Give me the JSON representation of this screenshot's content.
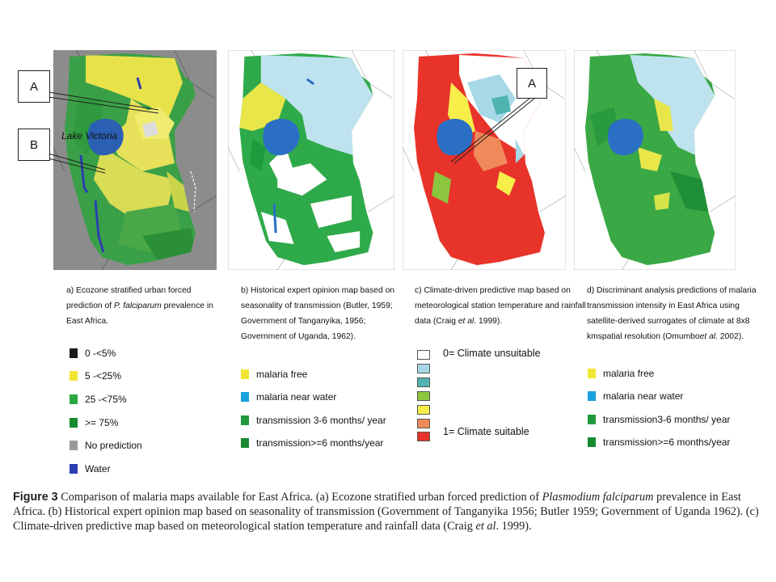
{
  "callouts": {
    "panel_a": [
      "A",
      "B"
    ],
    "panel_c": [
      "A"
    ]
  },
  "map_labels": {
    "lake_victoria": "Lake Victoria"
  },
  "panels": [
    {
      "id": "a",
      "caption_prefix": "a)   Ecozone stratified urban forced prediction of ",
      "caption_italic": "P. falciparum",
      "caption_suffix": " prevalence in East Africa.",
      "legend": [
        {
          "label": "0 -<5%",
          "color": "#1a1a1a"
        },
        {
          "label": "5 -<25%",
          "color": "#f2e635"
        },
        {
          "label": "25 -<75%",
          "color": "#2aa844"
        },
        {
          "label": ">= 75%",
          "color": "#178a30"
        },
        {
          "label": "No prediction",
          "color": "#9a9a9a"
        },
        {
          "label": "Water",
          "color": "#2b3fb0"
        }
      ]
    },
    {
      "id": "b",
      "caption_prefix": "b) Historical expert opinion map based on seasonality of transmission (Butler, 1959; Government of Tanganyika, 1956; Government of Uganda, 1962).",
      "caption_italic": "",
      "caption_suffix": "",
      "legend": [
        {
          "label": "malaria free",
          "color": "#f2e635"
        },
        {
          "label": "malaria near water",
          "color": "#1aa3e0"
        },
        {
          "label": "transmission 3-6 months/ year",
          "color": "#1f9a3c"
        },
        {
          "label": "transmission>=6 months/year",
          "color": "#178a30"
        }
      ]
    },
    {
      "id": "c",
      "caption_prefix": "c) Climate-driven predictive map based on meteorological station temperature and rainfall data (Craig ",
      "caption_italic": "et al",
      "caption_suffix": ". 1999).",
      "legend_top_label": "0= Climate unsuitable",
      "legend_bottom_label": "1= Climate suitable",
      "legend": [
        {
          "color": "#ffffff"
        },
        {
          "color": "#a6d8e6"
        },
        {
          "color": "#4fb3b0"
        },
        {
          "color": "#8cc63f"
        },
        {
          "color": "#f7ee4a"
        },
        {
          "color": "#f08a5a"
        },
        {
          "color": "#e8332a"
        }
      ]
    },
    {
      "id": "d",
      "caption_prefix": "d) Discriminant analysis predictions of malaria transmission intensity in East Africa using satellite-derived surrogates of climate at 8x8 kmspatial resolution (Omumbo",
      "caption_italic": "et al.",
      "caption_suffix": " 2002).",
      "legend": [
        {
          "label": "malaria free",
          "color": "#f2e635"
        },
        {
          "label": "malaria near water",
          "color": "#1aa3e0"
        },
        {
          "label": "transmission3-6 months/ year",
          "color": "#1f9a3c"
        },
        {
          "label": "transmission>=6 months/year",
          "color": "#178a30"
        }
      ]
    }
  ],
  "figure_caption": {
    "label": "Figure 3",
    "text_1": "  Comparison of malaria maps available for East Africa. (a) Ecozone stratified urban forced prediction of ",
    "italic_1": "Plasmodium falciparum",
    "text_2": " prevalence in East Africa. (b) Historical expert opinion map based on seasonality of transmission (Government of Tanganyika 1956; Butler 1959; Government of Uganda 1962). (c) Climate-driven predictive map based on meteorological station temperature and rainfall data (Craig ",
    "italic_2": "et al",
    "text_3": ". 1999)."
  }
}
